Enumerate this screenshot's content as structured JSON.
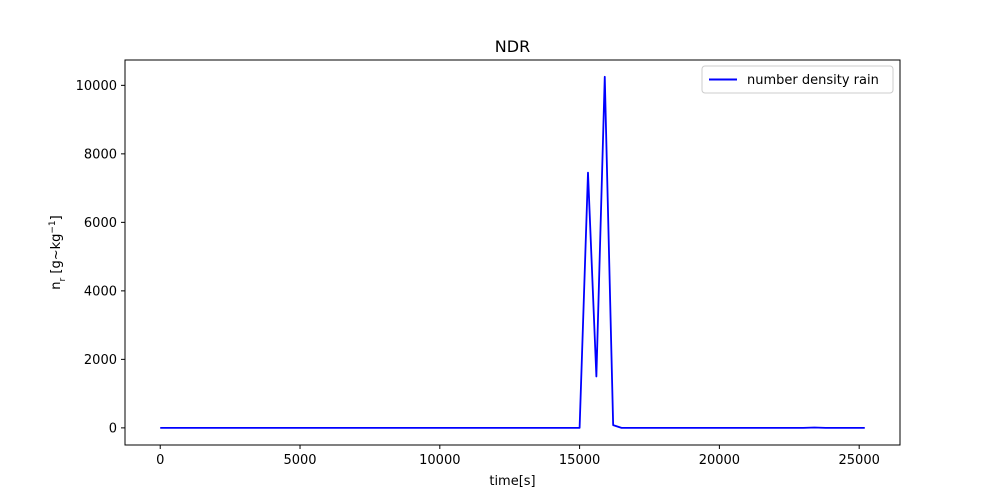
{
  "chart_data": {
    "type": "line",
    "title": "NDR",
    "xlabel": "time[s]",
    "ylabel": {
      "base": "n",
      "sub": "r",
      "unit_open": " [g~kg",
      "sup": "−1",
      "unit_close": "]"
    },
    "xlim": [
      -1260,
      26460
    ],
    "ylim": [
      -500,
      10740
    ],
    "xticks": [
      0,
      5000,
      10000,
      15000,
      20000,
      25000
    ],
    "xtick_labels": [
      "0",
      "5000",
      "10000",
      "15000",
      "20000",
      "25000"
    ],
    "yticks": [
      0,
      2000,
      4000,
      6000,
      8000,
      10000
    ],
    "ytick_labels": [
      "0",
      "2000",
      "4000",
      "6000",
      "8000",
      "10000"
    ],
    "legend_position": "top-right",
    "grid": false,
    "series": [
      {
        "name": "number density rain",
        "color": "#0000ff",
        "x": [
          0,
          15000,
          15300,
          15600,
          15900,
          16200,
          16500,
          17000,
          23000,
          23400,
          23800,
          25200
        ],
        "y": [
          0,
          0,
          7450,
          1500,
          10250,
          80,
          0,
          0,
          0,
          10,
          0,
          0
        ]
      }
    ]
  }
}
